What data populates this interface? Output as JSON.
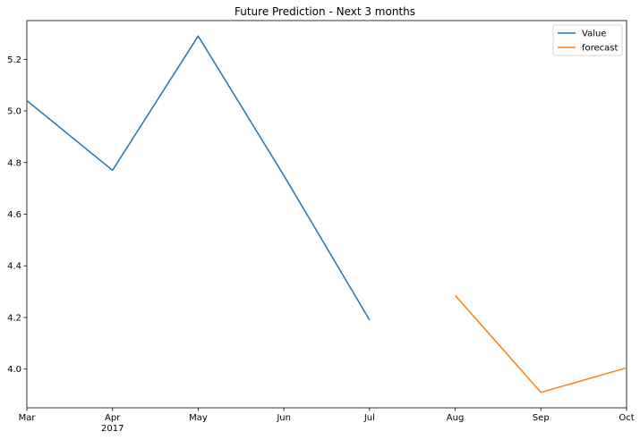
{
  "chart_data": {
    "type": "line",
    "title": "Future Prediction - Next 3 months",
    "xlabel": "",
    "ylabel": "",
    "categories": [
      "Mar",
      "Apr",
      "May",
      "Jun",
      "Jul",
      "Aug",
      "Sep",
      "Oct"
    ],
    "x_secondary_labels": [
      {
        "category": "Apr",
        "label": "2017"
      }
    ],
    "ylim": [
      3.85,
      5.35
    ],
    "yticks": [
      "4.0",
      "4.2",
      "4.4",
      "4.6",
      "4.8",
      "5.0",
      "5.2"
    ],
    "grid": false,
    "legend_position": "top-right",
    "series": [
      {
        "name": "Value",
        "color": "#1f77b4",
        "points": [
          {
            "x": "Mar",
            "y": 5.04
          },
          {
            "x": "Apr",
            "y": 4.77
          },
          {
            "x": "May",
            "y": 5.29
          },
          {
            "x": "Jun",
            "y": 4.75
          },
          {
            "x": "Jul",
            "y": 4.19
          }
        ]
      },
      {
        "name": "forecast",
        "color": "#ff7f0e",
        "points": [
          {
            "x": "Aug",
            "y": 4.285
          },
          {
            "x": "Sep",
            "y": 3.91
          },
          {
            "x": "Oct",
            "y": 4.005
          }
        ]
      }
    ]
  }
}
